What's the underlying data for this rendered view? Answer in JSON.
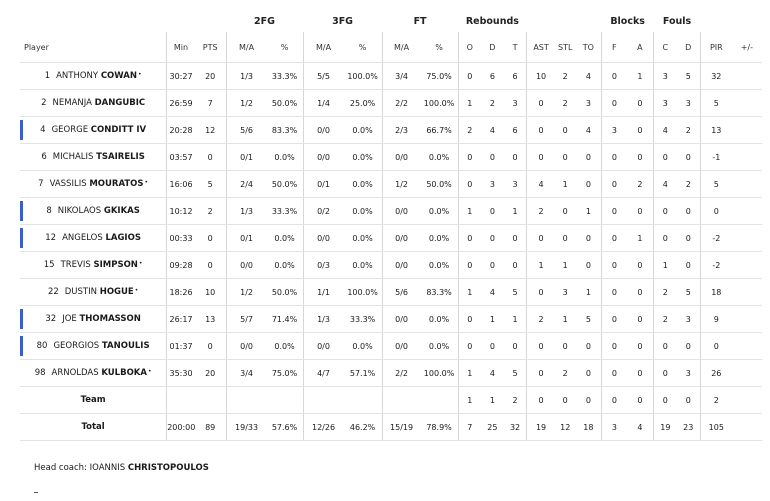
{
  "groups": {
    "fg2": "2FG",
    "fg3": "3FG",
    "ft": "FT",
    "reb": "Rebounds",
    "blk": "Blocks",
    "fouls": "Fouls"
  },
  "columns": [
    "Player",
    "Min",
    "PTS",
    "M/A",
    "%",
    "M/A",
    "%",
    "M/A",
    "%",
    "O",
    "D",
    "T",
    "AST",
    "STL",
    "TO",
    "F",
    "A",
    "C",
    "D",
    "PIR",
    "+/-"
  ],
  "players": [
    {
      "num": "1",
      "first": "ANTHONY",
      "last": "COWAN",
      "star": true,
      "mark": false,
      "stats": [
        "30:27",
        "20",
        "1/3",
        "33.3%",
        "5/5",
        "100.0%",
        "3/4",
        "75.0%",
        "0",
        "6",
        "6",
        "10",
        "2",
        "4",
        "0",
        "1",
        "3",
        "5",
        "32",
        ""
      ]
    },
    {
      "num": "2",
      "first": "NEMANJA",
      "last": "DANGUBIC",
      "star": false,
      "mark": false,
      "stats": [
        "26:59",
        "7",
        "1/2",
        "50.0%",
        "1/4",
        "25.0%",
        "2/2",
        "100.0%",
        "1",
        "2",
        "3",
        "0",
        "2",
        "3",
        "0",
        "0",
        "3",
        "3",
        "5",
        ""
      ]
    },
    {
      "num": "4",
      "first": "GEORGE",
      "last": "CONDITT IV",
      "star": false,
      "mark": true,
      "stats": [
        "20:28",
        "12",
        "5/6",
        "83.3%",
        "0/0",
        "0.0%",
        "2/3",
        "66.7%",
        "2",
        "4",
        "6",
        "0",
        "0",
        "4",
        "3",
        "0",
        "4",
        "2",
        "13",
        ""
      ]
    },
    {
      "num": "6",
      "first": "MICHALIS",
      "last": "TSAIRELIS",
      "star": false,
      "mark": false,
      "stats": [
        "03:57",
        "0",
        "0/1",
        "0.0%",
        "0/0",
        "0.0%",
        "0/0",
        "0.0%",
        "0",
        "0",
        "0",
        "0",
        "0",
        "0",
        "0",
        "0",
        "0",
        "0",
        "-1",
        ""
      ]
    },
    {
      "num": "7",
      "first": "VASSILIS",
      "last": "MOURATOS",
      "star": true,
      "mark": false,
      "stats": [
        "16:06",
        "5",
        "2/4",
        "50.0%",
        "0/1",
        "0.0%",
        "1/2",
        "50.0%",
        "0",
        "3",
        "3",
        "4",
        "1",
        "0",
        "0",
        "2",
        "4",
        "2",
        "5",
        ""
      ]
    },
    {
      "num": "8",
      "first": "NIKOLAOS",
      "last": "GKIKAS",
      "star": false,
      "mark": true,
      "stats": [
        "10:12",
        "2",
        "1/3",
        "33.3%",
        "0/2",
        "0.0%",
        "0/0",
        "0.0%",
        "1",
        "0",
        "1",
        "2",
        "0",
        "1",
        "0",
        "0",
        "0",
        "0",
        "0",
        ""
      ]
    },
    {
      "num": "12",
      "first": "ANGELOS",
      "last": "LAGIOS",
      "star": false,
      "mark": true,
      "stats": [
        "00:33",
        "0",
        "0/1",
        "0.0%",
        "0/0",
        "0.0%",
        "0/0",
        "0.0%",
        "0",
        "0",
        "0",
        "0",
        "0",
        "0",
        "0",
        "1",
        "0",
        "0",
        "-2",
        ""
      ]
    },
    {
      "num": "15",
      "first": "TREVIS",
      "last": "SIMPSON",
      "star": true,
      "mark": false,
      "stats": [
        "09:28",
        "0",
        "0/0",
        "0.0%",
        "0/3",
        "0.0%",
        "0/0",
        "0.0%",
        "0",
        "0",
        "0",
        "1",
        "1",
        "0",
        "0",
        "0",
        "1",
        "0",
        "-2",
        ""
      ]
    },
    {
      "num": "22",
      "first": "DUSTIN",
      "last": "HOGUE",
      "star": true,
      "mark": false,
      "stats": [
        "18:26",
        "10",
        "1/2",
        "50.0%",
        "1/1",
        "100.0%",
        "5/6",
        "83.3%",
        "1",
        "4",
        "5",
        "0",
        "3",
        "1",
        "0",
        "0",
        "2",
        "5",
        "18",
        ""
      ]
    },
    {
      "num": "32",
      "first": "JOE",
      "last": "THOMASSON",
      "star": false,
      "mark": true,
      "stats": [
        "26:17",
        "13",
        "5/7",
        "71.4%",
        "1/3",
        "33.3%",
        "0/0",
        "0.0%",
        "0",
        "1",
        "1",
        "2",
        "1",
        "5",
        "0",
        "0",
        "2",
        "3",
        "9",
        ""
      ]
    },
    {
      "num": "80",
      "first": "GEORGIOS",
      "last": "TANOULIS",
      "star": false,
      "mark": true,
      "stats": [
        "01:37",
        "0",
        "0/0",
        "0.0%",
        "0/0",
        "0.0%",
        "0/0",
        "0.0%",
        "0",
        "0",
        "0",
        "0",
        "0",
        "0",
        "0",
        "0",
        "0",
        "0",
        "0",
        ""
      ]
    },
    {
      "num": "98",
      "first": "ARNOLDAS",
      "last": "KULBOKA",
      "star": true,
      "mark": false,
      "stats": [
        "35:30",
        "20",
        "3/4",
        "75.0%",
        "4/7",
        "57.1%",
        "2/2",
        "100.0%",
        "1",
        "4",
        "5",
        "0",
        "2",
        "0",
        "0",
        "0",
        "0",
        "3",
        "26",
        ""
      ]
    }
  ],
  "team": {
    "label": "Team",
    "stats": [
      "",
      "",
      "",
      "",
      "",
      "",
      "",
      "",
      "1",
      "1",
      "2",
      "0",
      "0",
      "0",
      "0",
      "0",
      "0",
      "0",
      "2",
      ""
    ]
  },
  "total": {
    "label": "Total",
    "stats": [
      "200:00",
      "89",
      "19/33",
      "57.6%",
      "12/26",
      "46.2%",
      "15/19",
      "78.9%",
      "7",
      "25",
      "32",
      "19",
      "12",
      "18",
      "3",
      "4",
      "19",
      "23",
      "105",
      ""
    ]
  },
  "coach": {
    "label": "Head coach:",
    "first": "IOANNIS",
    "last": "CHRISTOPOULOS"
  },
  "colors": {
    "mark": "#3a5fcc",
    "border": "#e3e3e3"
  }
}
